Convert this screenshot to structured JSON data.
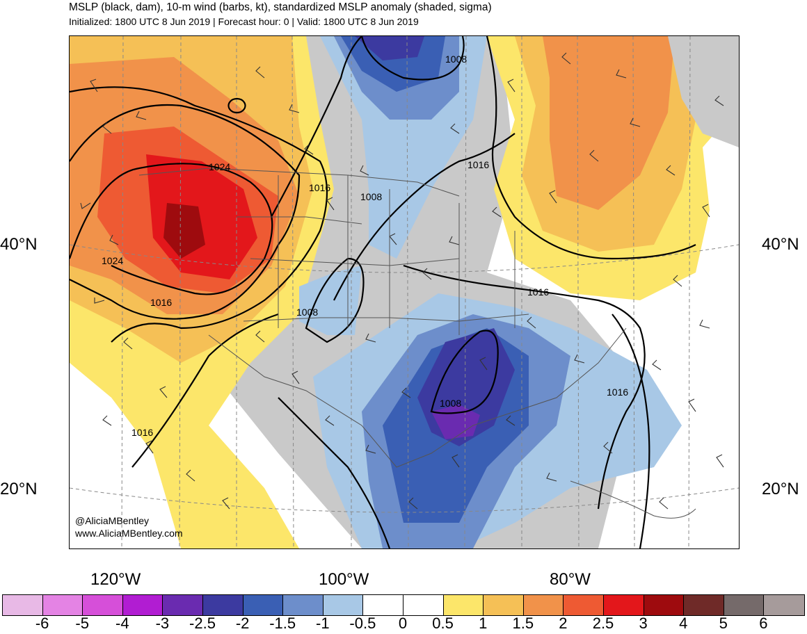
{
  "title": "MSLP (black, dam), 10-m wind (barbs, kt), standardized MSLP anomaly (shaded, sigma)",
  "subtitle": "Initialized: 1800 UTC 8 Jun 2019 | Forecast hour: 0 | Valid: 1800 UTC 8 Jun 2019",
  "lat_labels": [
    "40°N",
    "20°N"
  ],
  "lon_labels": [
    "120°W",
    "100°W",
    "80°W"
  ],
  "credit": [
    "@AliciaMBentley",
    "www.AliciaMBentley.com"
  ],
  "isobar_labels": [
    "1024",
    "1016",
    "1008",
    "1016",
    "1008",
    "1016",
    "1024",
    "1016",
    "1008",
    "1016",
    "1016",
    "1008",
    "1016",
    "1008"
  ],
  "colorbar": {
    "labels": [
      "-6",
      "-5",
      "-4",
      "-3",
      "-2.5",
      "-2",
      "-1.5",
      "-1",
      "-0.5",
      "0",
      "0.5",
      "1",
      "1.5",
      "2",
      "2.5",
      "3",
      "4",
      "5",
      "6"
    ],
    "colors": [
      "#e8b9e6",
      "#e483e4",
      "#d64fd9",
      "#b11dd2",
      "#6a2bb0",
      "#3c3aa0",
      "#3a5fb4",
      "#6d8ecb",
      "#a8c8e6",
      "#ffffff",
      "#ffffff",
      "#fce66a",
      "#f5c056",
      "#f1924a",
      "#ee5a33",
      "#e3171b",
      "#9e0b0e",
      "#6f2a28",
      "#756a6a",
      "#a69b9b"
    ]
  }
}
